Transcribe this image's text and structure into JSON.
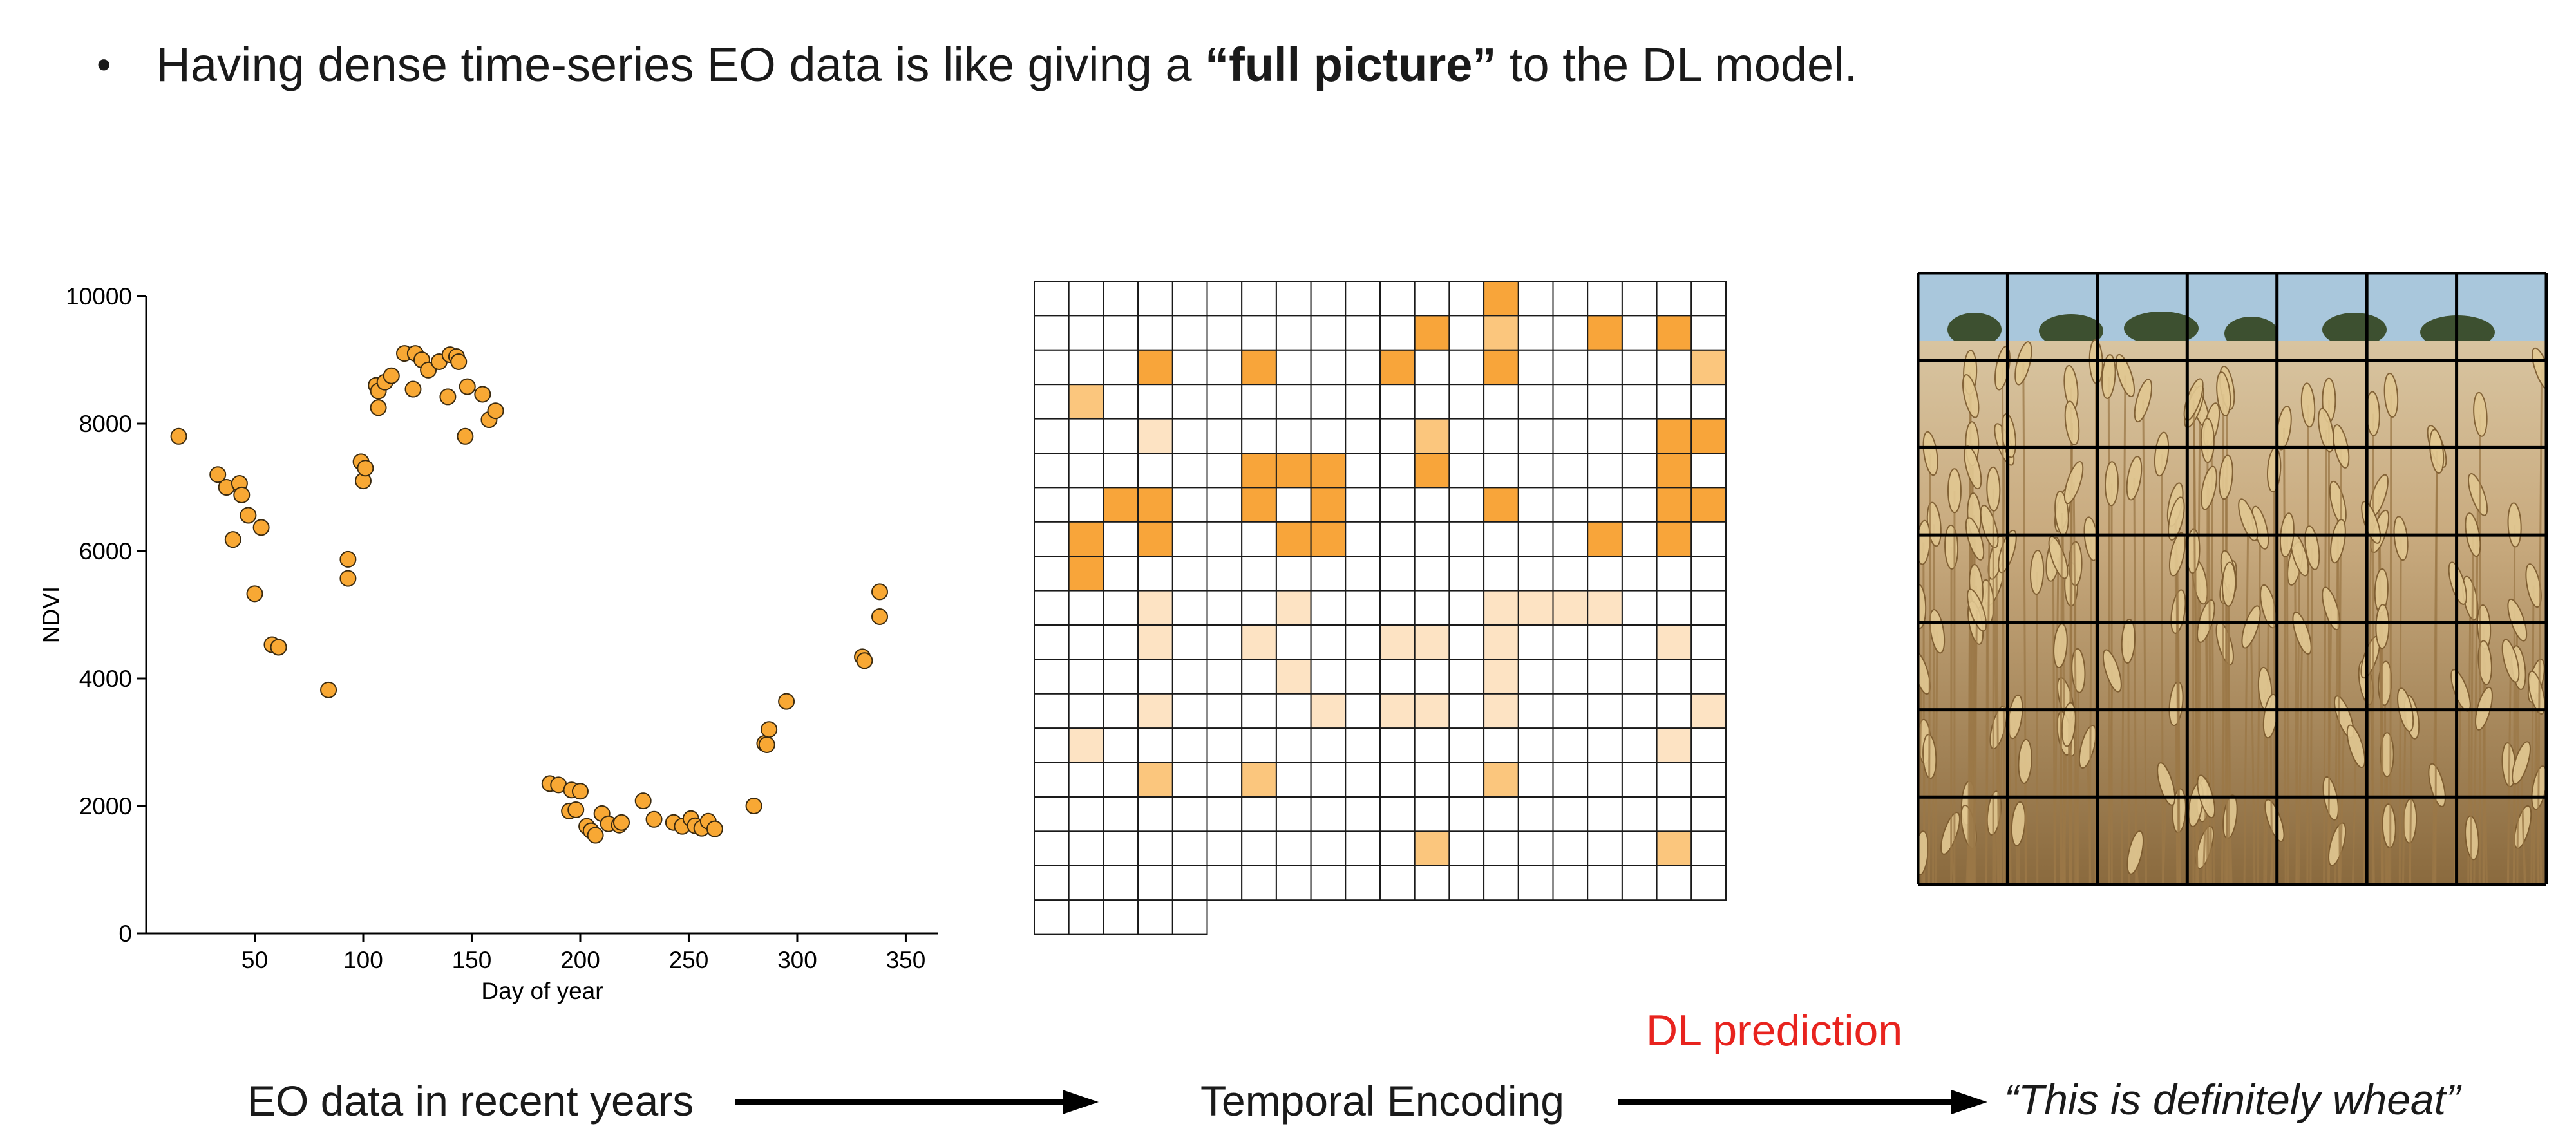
{
  "header": {
    "bullet": "•",
    "text_before": "Having dense time-series EO data is like giving a ",
    "text_bold": "“full picture”",
    "text_after": " to the DL model."
  },
  "chart_data": {
    "type": "scatter",
    "xlabel": "Day of year",
    "ylabel": "NDVI",
    "xlim": [
      0,
      365
    ],
    "ylim": [
      0,
      10000
    ],
    "xticks": [
      50,
      100,
      150,
      200,
      250,
      300,
      350
    ],
    "yticks": [
      0,
      2000,
      4000,
      6000,
      8000,
      10000
    ],
    "marker_color": "#f8a834",
    "points": [
      [
        15,
        7800
      ],
      [
        33,
        7200
      ],
      [
        37,
        7000
      ],
      [
        40,
        6180
      ],
      [
        43,
        7060
      ],
      [
        44,
        6880
      ],
      [
        47,
        6560
      ],
      [
        50,
        5330
      ],
      [
        53,
        6370
      ],
      [
        58,
        4530
      ],
      [
        61,
        4490
      ],
      [
        84,
        3820
      ],
      [
        93,
        5870
      ],
      [
        93,
        5570
      ],
      [
        99,
        7400
      ],
      [
        100,
        7100
      ],
      [
        101,
        7300
      ],
      [
        106,
        8600
      ],
      [
        107,
        8250
      ],
      [
        107,
        8510
      ],
      [
        110,
        8650
      ],
      [
        113,
        8750
      ],
      [
        119,
        9100
      ],
      [
        123,
        8540
      ],
      [
        124,
        9100
      ],
      [
        127,
        9000
      ],
      [
        130,
        8840
      ],
      [
        135,
        8970
      ],
      [
        139,
        8420
      ],
      [
        140,
        9080
      ],
      [
        143,
        9050
      ],
      [
        144,
        8970
      ],
      [
        147,
        7800
      ],
      [
        148,
        8580
      ],
      [
        155,
        8460
      ],
      [
        158,
        8060
      ],
      [
        161,
        8200
      ],
      [
        186,
        2350
      ],
      [
        190,
        2330
      ],
      [
        195,
        1920
      ],
      [
        196,
        2250
      ],
      [
        198,
        1940
      ],
      [
        200,
        2230
      ],
      [
        203,
        1680
      ],
      [
        205,
        1610
      ],
      [
        207,
        1540
      ],
      [
        210,
        1880
      ],
      [
        213,
        1720
      ],
      [
        218,
        1700
      ],
      [
        219,
        1740
      ],
      [
        229,
        2080
      ],
      [
        234,
        1790
      ],
      [
        243,
        1740
      ],
      [
        247,
        1680
      ],
      [
        251,
        1800
      ],
      [
        253,
        1690
      ],
      [
        256,
        1650
      ],
      [
        259,
        1760
      ],
      [
        262,
        1640
      ],
      [
        280,
        2000
      ],
      [
        285,
        2980
      ],
      [
        286,
        2960
      ],
      [
        287,
        3200
      ],
      [
        295,
        3640
      ],
      [
        330,
        4340
      ],
      [
        331,
        4280
      ],
      [
        338,
        5360
      ],
      [
        338,
        4970
      ]
    ]
  },
  "encoding_grid": {
    "rows": 19,
    "cols": 20,
    "last_row_cols": 5,
    "colors": {
      "dark": "#f8a53a",
      "medium": "#fbc67d",
      "light": "#fde3c3"
    },
    "cells": [
      [
        0,
        13,
        "dark"
      ],
      [
        1,
        11,
        "dark"
      ],
      [
        1,
        13,
        "medium"
      ],
      [
        1,
        16,
        "dark"
      ],
      [
        1,
        18,
        "dark"
      ],
      [
        2,
        3,
        "dark"
      ],
      [
        2,
        6,
        "dark"
      ],
      [
        2,
        10,
        "dark"
      ],
      [
        2,
        13,
        "dark"
      ],
      [
        2,
        19,
        "medium"
      ],
      [
        3,
        1,
        "medium"
      ],
      [
        4,
        3,
        "light"
      ],
      [
        4,
        11,
        "medium"
      ],
      [
        4,
        18,
        "dark"
      ],
      [
        4,
        19,
        "dark"
      ],
      [
        5,
        6,
        "dark"
      ],
      [
        5,
        7,
        "dark"
      ],
      [
        5,
        8,
        "dark"
      ],
      [
        5,
        11,
        "dark"
      ],
      [
        5,
        18,
        "dark"
      ],
      [
        6,
        2,
        "dark"
      ],
      [
        6,
        3,
        "dark"
      ],
      [
        6,
        6,
        "dark"
      ],
      [
        6,
        8,
        "dark"
      ],
      [
        6,
        13,
        "dark"
      ],
      [
        6,
        18,
        "dark"
      ],
      [
        6,
        19,
        "dark"
      ],
      [
        7,
        1,
        "dark"
      ],
      [
        7,
        3,
        "dark"
      ],
      [
        7,
        7,
        "dark"
      ],
      [
        7,
        8,
        "dark"
      ],
      [
        7,
        16,
        "dark"
      ],
      [
        7,
        18,
        "dark"
      ],
      [
        8,
        1,
        "dark"
      ],
      [
        9,
        3,
        "light"
      ],
      [
        9,
        7,
        "light"
      ],
      [
        9,
        13,
        "light"
      ],
      [
        9,
        14,
        "light"
      ],
      [
        9,
        15,
        "light"
      ],
      [
        9,
        16,
        "light"
      ],
      [
        10,
        3,
        "light"
      ],
      [
        10,
        6,
        "light"
      ],
      [
        10,
        10,
        "light"
      ],
      [
        10,
        11,
        "light"
      ],
      [
        10,
        13,
        "light"
      ],
      [
        10,
        18,
        "light"
      ],
      [
        11,
        7,
        "light"
      ],
      [
        11,
        13,
        "light"
      ],
      [
        12,
        3,
        "light"
      ],
      [
        12,
        8,
        "light"
      ],
      [
        12,
        10,
        "light"
      ],
      [
        12,
        11,
        "light"
      ],
      [
        12,
        13,
        "light"
      ],
      [
        12,
        19,
        "light"
      ],
      [
        13,
        1,
        "light"
      ],
      [
        13,
        18,
        "light"
      ],
      [
        14,
        3,
        "medium"
      ],
      [
        14,
        6,
        "medium"
      ],
      [
        14,
        13,
        "medium"
      ],
      [
        16,
        11,
        "medium"
      ],
      [
        16,
        18,
        "medium"
      ]
    ]
  },
  "wheat_photo": {
    "rows": 7,
    "cols": 7,
    "sky_color": "#a9c7dc",
    "field_color": "#c9ab7f",
    "stalk_color": "#9b7847"
  },
  "flow": {
    "step1": "EO data in recent years",
    "step2": "Temporal Encoding",
    "prediction_label": "DL prediction",
    "result": "“This is definitely wheat”",
    "accent_color": "#e8231e"
  }
}
